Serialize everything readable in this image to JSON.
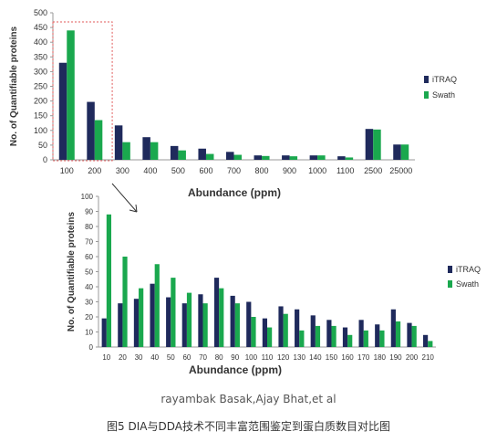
{
  "colors": {
    "itraq": "#1f2a5c",
    "swath": "#1aa84e",
    "axis": "#9a9a9a",
    "text": "#333333",
    "highlight_box": "#e05a5a",
    "arrow": "#333333"
  },
  "chart_data": [
    {
      "type": "bar",
      "title": "",
      "xlabel": "Abundance (ppm)",
      "ylabel": "No. of Quantifiable proteins",
      "ylim": [
        0,
        500
      ],
      "yticks": [
        0,
        50,
        100,
        150,
        200,
        250,
        300,
        350,
        400,
        450,
        500
      ],
      "categories": [
        "100",
        "200",
        "300",
        "400",
        "500",
        "600",
        "700",
        "800",
        "900",
        "1000",
        "1100",
        "2500",
        "25000"
      ],
      "series": [
        {
          "name": "iTRAQ",
          "values": [
            330,
            197,
            117,
            77,
            47,
            38,
            27,
            15,
            15,
            15,
            12,
            105,
            52
          ]
        },
        {
          "name": "Swath",
          "values": [
            440,
            135,
            60,
            60,
            32,
            20,
            17,
            13,
            12,
            15,
            8,
            103,
            52
          ]
        }
      ],
      "legend": "right",
      "grid": false
    },
    {
      "type": "bar",
      "title": "",
      "xlabel": "Abundance (ppm)",
      "ylabel": "No. of Quantifiable proteins",
      "ylim": [
        0,
        100
      ],
      "yticks": [
        0,
        10,
        20,
        30,
        40,
        50,
        60,
        70,
        80,
        90,
        100
      ],
      "categories": [
        "10",
        "20",
        "30",
        "40",
        "50",
        "60",
        "70",
        "80",
        "90",
        "100",
        "110",
        "120",
        "130",
        "140",
        "150",
        "160",
        "170",
        "180",
        "190",
        "200",
        "210"
      ],
      "series": [
        {
          "name": "iTRAQ",
          "values": [
            19,
            29,
            32,
            42,
            33,
            29,
            35,
            46,
            34,
            30,
            19,
            27,
            25,
            21,
            18,
            13,
            18,
            15,
            25,
            16,
            8
          ]
        },
        {
          "name": "Swath",
          "values": [
            88,
            60,
            39,
            55,
            46,
            36,
            29,
            39,
            29,
            20,
            13,
            22,
            11,
            14,
            14,
            8,
            11,
            11,
            17,
            14,
            4
          ]
        }
      ],
      "legend": "right",
      "grid": false
    }
  ],
  "caption": {
    "credit": "rayambak Basak,Ajay Bhat,et al",
    "figure": "图5 DIA与DDA技术不同丰富范围鉴定到蛋白质数目对比图"
  }
}
